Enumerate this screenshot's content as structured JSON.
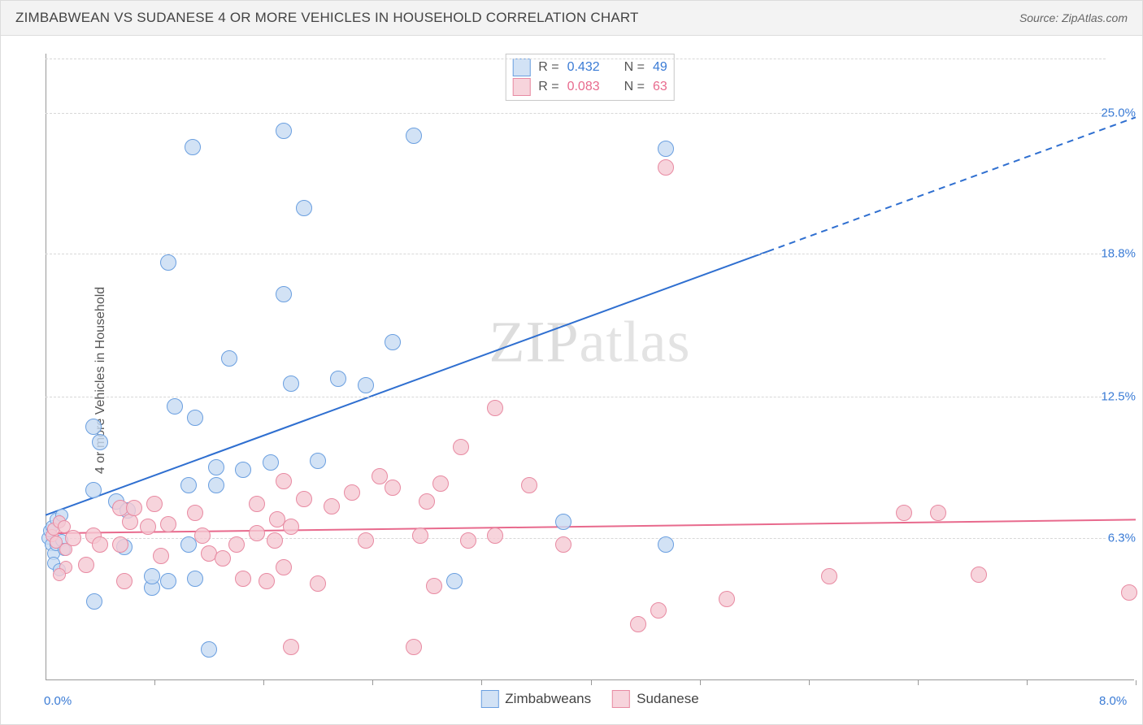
{
  "title": "ZIMBABWEAN VS SUDANESE 4 OR MORE VEHICLES IN HOUSEHOLD CORRELATION CHART",
  "source_prefix": "Source: ",
  "source_name": "ZipAtlas.com",
  "y_axis_label": "4 or more Vehicles in Household",
  "watermark_a": "ZIP",
  "watermark_b": "atlas",
  "chart": {
    "type": "scatter",
    "background_color": "#ffffff",
    "grid_color": "#d8d8d8",
    "axis_color": "#999999",
    "xlim": [
      0.0,
      8.0
    ],
    "ylim": [
      0.0,
      27.6
    ],
    "x_ticks": [
      0.8,
      1.6,
      2.4,
      3.2,
      4.0,
      4.8,
      5.6,
      6.4,
      7.2,
      8.0
    ],
    "x_axis_labels": [
      {
        "pos": 0.0,
        "text": "0.0%",
        "color": "#3a7bd5"
      },
      {
        "pos": 8.0,
        "text": "8.0%",
        "color": "#3a7bd5"
      }
    ],
    "y_gridlines": [
      {
        "y": 6.3,
        "label": "6.3%",
        "color": "#3a7bd5"
      },
      {
        "y": 12.5,
        "label": "12.5%",
        "color": "#3a7bd5"
      },
      {
        "y": 18.8,
        "label": "18.8%",
        "color": "#3a7bd5"
      },
      {
        "y": 25.0,
        "label": "25.0%",
        "color": "#3a7bd5"
      },
      {
        "y": 27.4,
        "label": "",
        "color": ""
      }
    ],
    "point_radius": 10,
    "point_radius_dense": 8,
    "series": [
      {
        "name": "Zimbabweans",
        "label": "Zimbabweans",
        "fill": "#c7dbf2cc",
        "stroke": "#6a9fe0",
        "R": "0.432",
        "N": "49",
        "stat_color": "#3a7bd5",
        "trend": {
          "x1": 0.0,
          "y1": 7.3,
          "x2_solid": 5.3,
          "y2_solid": 18.9,
          "x2_dash": 8.0,
          "y2_dash": 24.8,
          "color": "#2f6fd0",
          "width": 2
        },
        "points": [
          [
            0.02,
            6.3
          ],
          [
            0.03,
            6.6
          ],
          [
            0.04,
            6.0
          ],
          [
            0.05,
            6.8
          ],
          [
            0.06,
            5.6
          ],
          [
            0.06,
            5.2
          ],
          [
            0.08,
            7.1
          ],
          [
            0.08,
            6.0
          ],
          [
            0.1,
            4.9
          ],
          [
            0.1,
            7.0
          ],
          [
            0.12,
            6.2
          ],
          [
            0.12,
            7.3
          ],
          [
            0.14,
            5.8
          ],
          [
            0.35,
            8.4
          ],
          [
            0.35,
            11.2
          ],
          [
            0.4,
            10.5
          ],
          [
            0.52,
            7.9
          ],
          [
            0.58,
            5.9
          ],
          [
            0.6,
            7.5
          ],
          [
            0.36,
            3.5
          ],
          [
            0.78,
            4.1
          ],
          [
            0.78,
            4.6
          ],
          [
            0.9,
            4.4
          ],
          [
            0.9,
            18.4
          ],
          [
            0.95,
            12.1
          ],
          [
            1.05,
            6.0
          ],
          [
            1.05,
            8.6
          ],
          [
            1.1,
            4.5
          ],
          [
            1.2,
            1.4
          ],
          [
            1.08,
            23.5
          ],
          [
            1.1,
            11.6
          ],
          [
            1.25,
            8.6
          ],
          [
            1.25,
            9.4
          ],
          [
            1.35,
            14.2
          ],
          [
            1.45,
            9.3
          ],
          [
            1.65,
            9.6
          ],
          [
            1.75,
            24.2
          ],
          [
            1.75,
            17.0
          ],
          [
            1.8,
            13.1
          ],
          [
            1.9,
            20.8
          ],
          [
            2.0,
            9.7
          ],
          [
            2.15,
            13.3
          ],
          [
            2.35,
            13.0
          ],
          [
            2.55,
            14.9
          ],
          [
            2.7,
            24.0
          ],
          [
            3.0,
            4.4
          ],
          [
            3.8,
            7.0
          ],
          [
            4.55,
            23.4
          ],
          [
            4.55,
            6.0
          ]
        ]
      },
      {
        "name": "Sudanese",
        "label": "Sudanese",
        "fill": "#f5c9d3cc",
        "stroke": "#e88aa2",
        "R": "0.083",
        "N": "63",
        "stat_color": "#e86a8d",
        "trend": {
          "x1": 0.0,
          "y1": 6.5,
          "x2_solid": 8.0,
          "y2_solid": 7.1,
          "x2_dash": 8.0,
          "y2_dash": 7.1,
          "color": "#e86a8d",
          "width": 2
        },
        "points": [
          [
            0.05,
            6.4
          ],
          [
            0.06,
            6.7
          ],
          [
            0.08,
            6.1
          ],
          [
            0.1,
            7.0
          ],
          [
            0.14,
            6.8
          ],
          [
            0.15,
            5.8
          ],
          [
            0.15,
            5.0
          ],
          [
            0.2,
            6.3
          ],
          [
            0.1,
            4.7
          ],
          [
            0.3,
            5.1
          ],
          [
            0.35,
            6.4
          ],
          [
            0.4,
            6.0
          ],
          [
            0.55,
            7.6
          ],
          [
            0.55,
            6.0
          ],
          [
            0.58,
            4.4
          ],
          [
            0.62,
            7.0
          ],
          [
            0.65,
            7.6
          ],
          [
            0.75,
            6.8
          ],
          [
            0.8,
            7.8
          ],
          [
            0.85,
            5.5
          ],
          [
            0.9,
            6.9
          ],
          [
            1.1,
            7.4
          ],
          [
            1.15,
            6.4
          ],
          [
            1.2,
            5.6
          ],
          [
            1.3,
            5.4
          ],
          [
            1.4,
            6.0
          ],
          [
            1.45,
            4.5
          ],
          [
            1.55,
            6.5
          ],
          [
            1.55,
            7.8
          ],
          [
            1.62,
            4.4
          ],
          [
            1.68,
            6.2
          ],
          [
            1.7,
            7.1
          ],
          [
            1.75,
            5.0
          ],
          [
            1.75,
            8.8
          ],
          [
            1.8,
            6.8
          ],
          [
            1.8,
            1.5
          ],
          [
            1.9,
            8.0
          ],
          [
            2.0,
            4.3
          ],
          [
            2.1,
            7.7
          ],
          [
            2.25,
            8.3
          ],
          [
            2.35,
            6.2
          ],
          [
            2.45,
            9.0
          ],
          [
            2.55,
            8.5
          ],
          [
            2.7,
            1.5
          ],
          [
            2.75,
            6.4
          ],
          [
            2.8,
            7.9
          ],
          [
            2.85,
            4.2
          ],
          [
            2.9,
            8.7
          ],
          [
            3.05,
            10.3
          ],
          [
            3.1,
            6.2
          ],
          [
            3.3,
            6.4
          ],
          [
            3.3,
            12.0
          ],
          [
            3.55,
            8.6
          ],
          [
            3.8,
            6.0
          ],
          [
            4.35,
            2.5
          ],
          [
            4.5,
            3.1
          ],
          [
            4.55,
            22.6
          ],
          [
            5.0,
            3.6
          ],
          [
            5.75,
            4.6
          ],
          [
            6.3,
            7.4
          ],
          [
            6.55,
            7.4
          ],
          [
            6.85,
            4.7
          ],
          [
            7.95,
            3.9
          ]
        ]
      }
    ]
  },
  "stat_labels": {
    "R": "R =",
    "N": "N ="
  }
}
